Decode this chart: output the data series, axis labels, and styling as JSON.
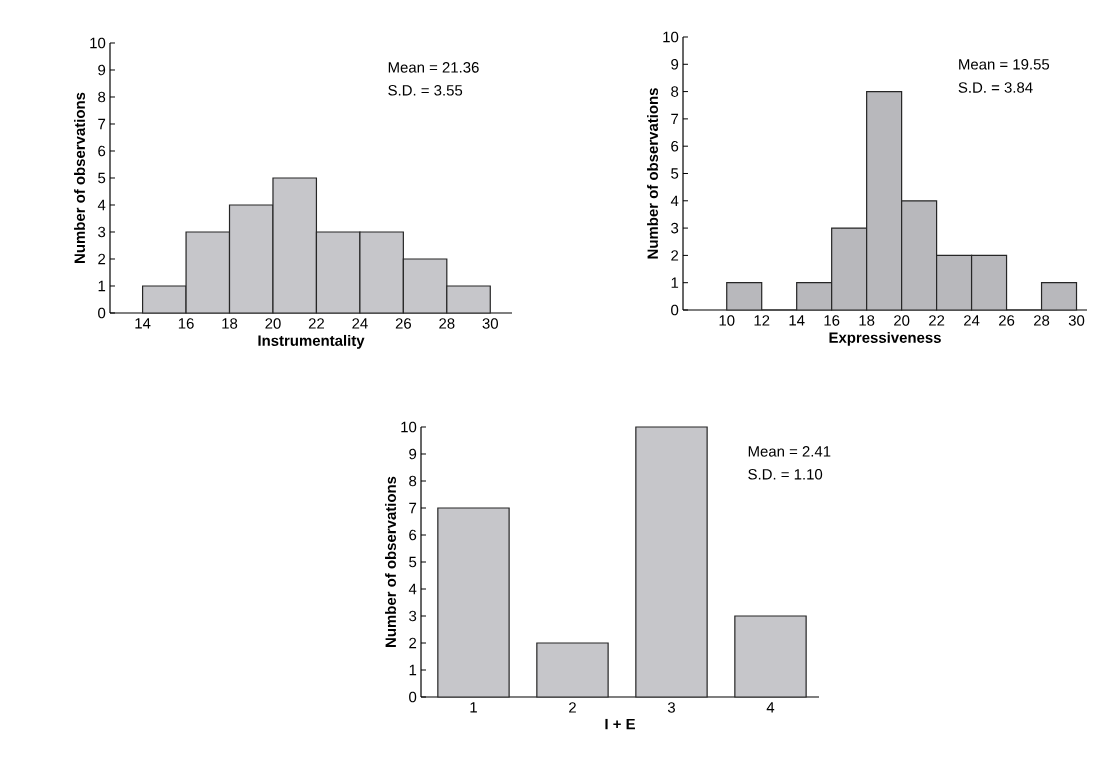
{
  "chart_data": [
    {
      "type": "histogram",
      "xlabel": "Instrumentality",
      "ylabel": "Number of observations",
      "bins": [
        14,
        16,
        18,
        20,
        22,
        24,
        26,
        28,
        30
      ],
      "values": [
        1,
        3,
        4,
        5,
        3,
        3,
        2,
        1
      ],
      "color": "#c6c6ca",
      "xlim": [
        12.5,
        31
      ],
      "ylim": [
        0,
        10
      ],
      "xticks": [
        14,
        16,
        18,
        20,
        22,
        24,
        26,
        28,
        30
      ],
      "yticks": [
        0,
        1,
        2,
        3,
        4,
        5,
        6,
        7,
        8,
        9,
        10
      ],
      "annotations": [
        "Mean = 21.36",
        "S.D. = 3.55"
      ]
    },
    {
      "type": "histogram",
      "xlabel": "Expressiveness",
      "ylabel": "Number of observations",
      "bins": [
        10,
        12,
        14,
        16,
        18,
        20,
        22,
        24,
        26,
        28,
        30
      ],
      "values": [
        1,
        0,
        1,
        3,
        8,
        4,
        2,
        2,
        0,
        1
      ],
      "color": "#b8b8bc",
      "xlim": [
        7.5,
        30.6
      ],
      "ylim": [
        0,
        10
      ],
      "xticks": [
        10,
        12,
        14,
        16,
        18,
        20,
        22,
        24,
        26,
        28,
        30
      ],
      "yticks": [
        0,
        1,
        2,
        3,
        4,
        5,
        6,
        7,
        8,
        9,
        10
      ],
      "annotations": [
        "Mean = 19.55",
        "S.D. = 3.84"
      ]
    },
    {
      "type": "bar",
      "xlabel": "I + E",
      "ylabel": "Number of observations",
      "categories": [
        "1",
        "2",
        "3",
        "4"
      ],
      "values": [
        7,
        2,
        10,
        3
      ],
      "color": "#c6c6ca",
      "ylim": [
        0,
        10
      ],
      "yticks": [
        0,
        1,
        2,
        3,
        4,
        5,
        6,
        7,
        8,
        9,
        10
      ],
      "annotations": [
        "Mean = 2.41",
        "S.D. = 1.10"
      ]
    }
  ]
}
